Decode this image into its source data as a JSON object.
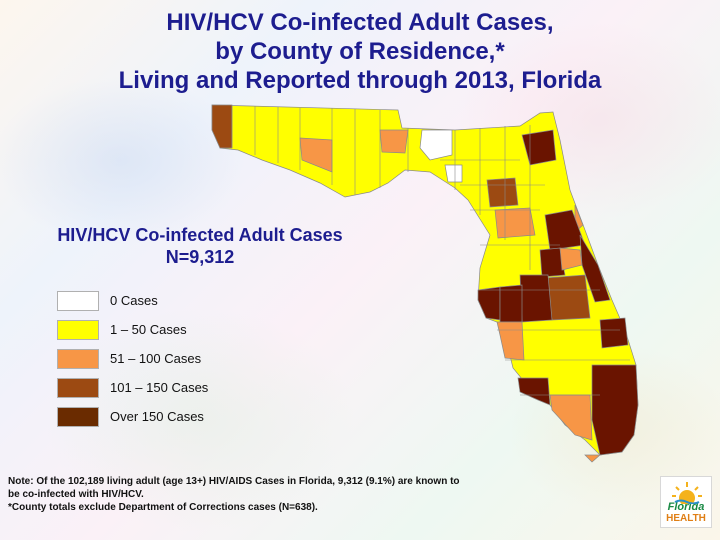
{
  "title": {
    "line1": "HIV/HCV Co-infected Adult Cases,",
    "line2": "by County of Residence,*",
    "line3": "Living and Reported through 2013, Florida"
  },
  "subtitle": {
    "line1": "HIV/HCV Co-infected Adult Cases",
    "line2": "N=9,312"
  },
  "legend": [
    {
      "label": "0 Cases",
      "color": "#ffffff"
    },
    {
      "label": "1 – 50 Cases",
      "color": "#ffff00"
    },
    {
      "label": "51 – 100 Cases",
      "color": "#f79646"
    },
    {
      "label": "101 – 150 Cases",
      "color": "#9c4a12"
    },
    {
      "label": "Over 150 Cases",
      "color": "#6a2b00"
    }
  ],
  "colors": {
    "c0": "#ffffff",
    "c1": "#ffff00",
    "c2": "#f79646",
    "c3": "#9c4a12",
    "c4": "#6a1400",
    "border": "#8a8a8a",
    "title": "#1d1d8f"
  },
  "note": {
    "line1": "Note: Of the 102,189 living adult (age 13+) HIV/AIDS Cases in Florida, 9,312 (9.1%) are known to",
    "line2": "be co-infected with HIV/HCV.",
    "line3": "*County totals exclude Department of Corrections cases (N=638)."
  },
  "logo": {
    "line1": "Florida",
    "line2": "HEALTH"
  }
}
